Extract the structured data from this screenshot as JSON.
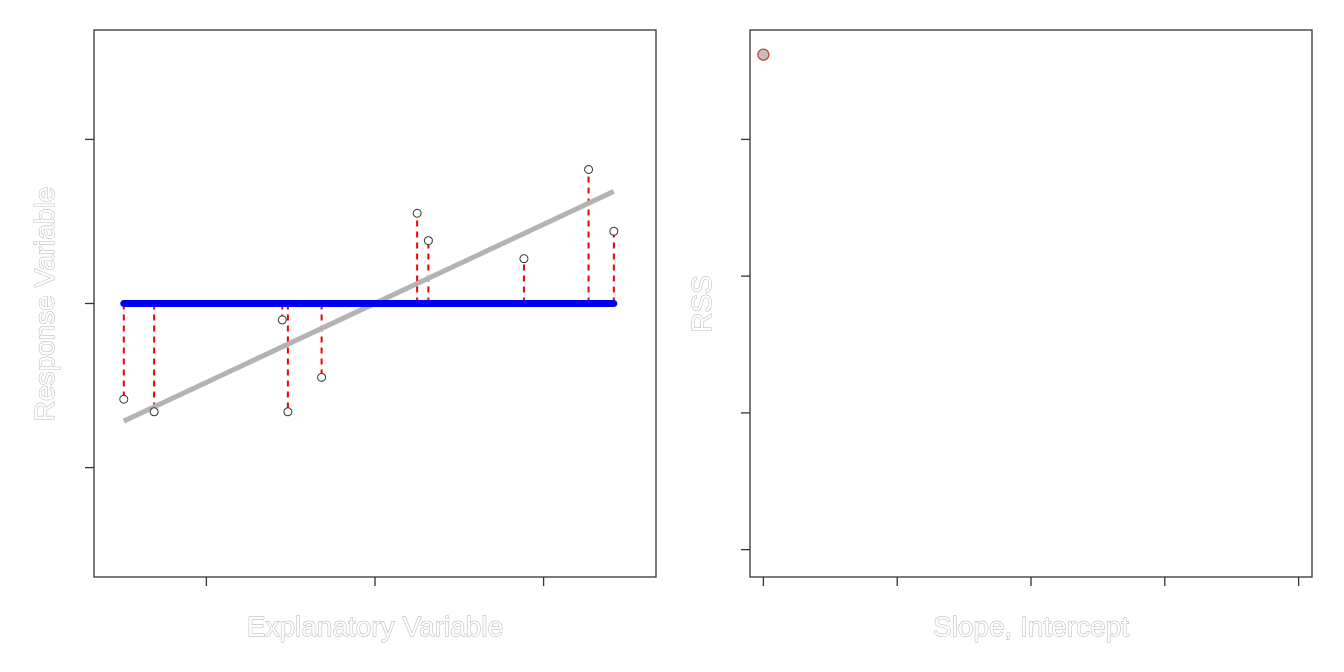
{
  "chart_data": [
    {
      "type": "scatter",
      "xlabel": "Explanatory Variable",
      "ylabel": "Response Variable",
      "xlim": [
        0,
        10
      ],
      "ylim": [
        0,
        10
      ],
      "xticks": [
        2,
        5,
        8
      ],
      "yticks": [
        2,
        5,
        8
      ],
      "points": [
        {
          "x": 0.53,
          "y": 3.25
        },
        {
          "x": 1.07,
          "y": 3.02
        },
        {
          "x": 3.35,
          "y": 4.7
        },
        {
          "x": 3.45,
          "y": 3.02
        },
        {
          "x": 4.05,
          "y": 3.65
        },
        {
          "x": 5.75,
          "y": 6.65
        },
        {
          "x": 5.95,
          "y": 6.15
        },
        {
          "x": 7.65,
          "y": 5.82
        },
        {
          "x": 8.8,
          "y": 7.45
        },
        {
          "x": 9.25,
          "y": 6.32
        }
      ],
      "mean_line": {
        "color": "#0000ee",
        "y": 5.0,
        "x_from": 0.53,
        "x_to": 9.25
      },
      "fit_line": {
        "color": "#b3b3b3",
        "x1": 0.53,
        "y1": 2.85,
        "x2": 9.25,
        "y2": 7.05
      },
      "residual_color": "#ee0000"
    },
    {
      "type": "scatter",
      "xlabel": "Slope, Intercept",
      "ylabel": "RSS",
      "xlim": [
        -0.1,
        4.1
      ],
      "ylim": [
        0,
        10
      ],
      "xticks": [
        0,
        1,
        2,
        3,
        4
      ],
      "yticks": [
        0.5,
        3,
        5.5,
        8
      ],
      "points": [
        {
          "x": 0,
          "y": 9.55
        }
      ],
      "point_color": "#c0c0c0",
      "point_stroke": "#cc4444"
    }
  ]
}
